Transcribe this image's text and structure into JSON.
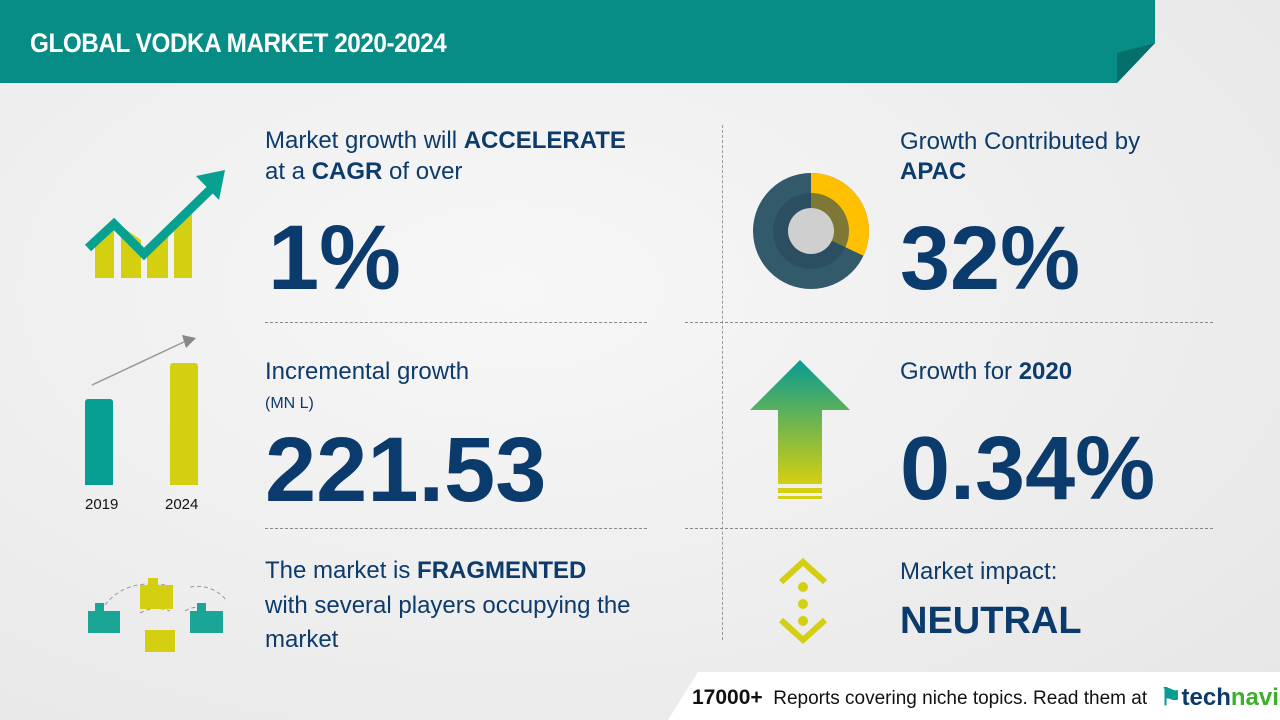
{
  "header": {
    "title": "GLOBAL VODKA MARKET 2020-2024"
  },
  "cagr": {
    "line1_pre": "Market growth will ",
    "line1_bold": "ACCELERATE",
    "line2_pre": "at a ",
    "line2_bold": "CAGR",
    "line2_post": " of over",
    "value": "1%"
  },
  "incremental": {
    "label": "Incremental growth",
    "unit": "(MN L)",
    "value": "221.53",
    "bar_years": [
      "2019",
      "2024"
    ]
  },
  "fragmented": {
    "line1_pre": "The market is ",
    "line1_bold": "FRAGMENTED",
    "line2": "with several players occupying the",
    "line3": "market"
  },
  "apac": {
    "label": "Growth Contributed by",
    "region": "APAC",
    "value": "32%",
    "share_percent": 32
  },
  "growth_year": {
    "label": "Growth for ",
    "year": "2020",
    "value": "0.34%"
  },
  "impact": {
    "label": "Market impact:",
    "value": "NEUTRAL"
  },
  "footer": {
    "count": "17000+",
    "text": "Reports covering niche topics. Read them at",
    "logo_tech": "tech",
    "logo_navio": "navio"
  },
  "colors": {
    "teal": "#078d86",
    "yellow_green": "#d4cf10",
    "navy": "#0b3a6c",
    "donut_dark": "#325a6b",
    "donut_yellow": "#ffc000"
  }
}
